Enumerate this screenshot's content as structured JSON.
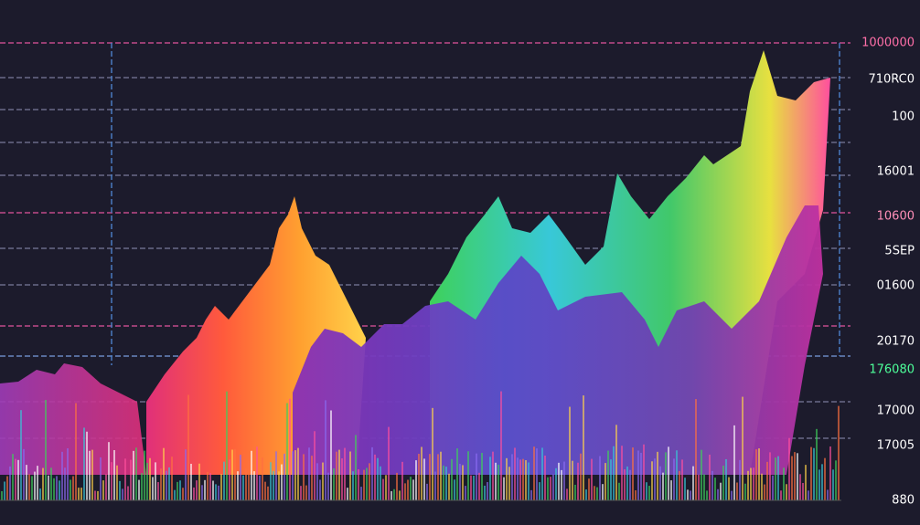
{
  "axis_labels": [
    {
      "text": "1000000",
      "color": "#ff6fa8"
    },
    {
      "text": "710RC0",
      "color": "#ffffff"
    },
    {
      "text": "100",
      "color": "#ffffff"
    },
    {
      "text": "16001",
      "color": "#ffffff"
    },
    {
      "text": "10600",
      "color": "#ff8fb8"
    },
    {
      "text": "5SEP",
      "color": "#ffffff"
    },
    {
      "text": "01600",
      "color": "#ffffff"
    },
    {
      "text": "20170",
      "color": "#ffffff"
    },
    {
      "text": "176080",
      "color": "#4dff9a"
    },
    {
      "text": "17000",
      "color": "#ffffff"
    },
    {
      "text": "17005",
      "color": "#ffffff"
    },
    {
      "text": "880",
      "color": "#ffffff"
    }
  ]
}
